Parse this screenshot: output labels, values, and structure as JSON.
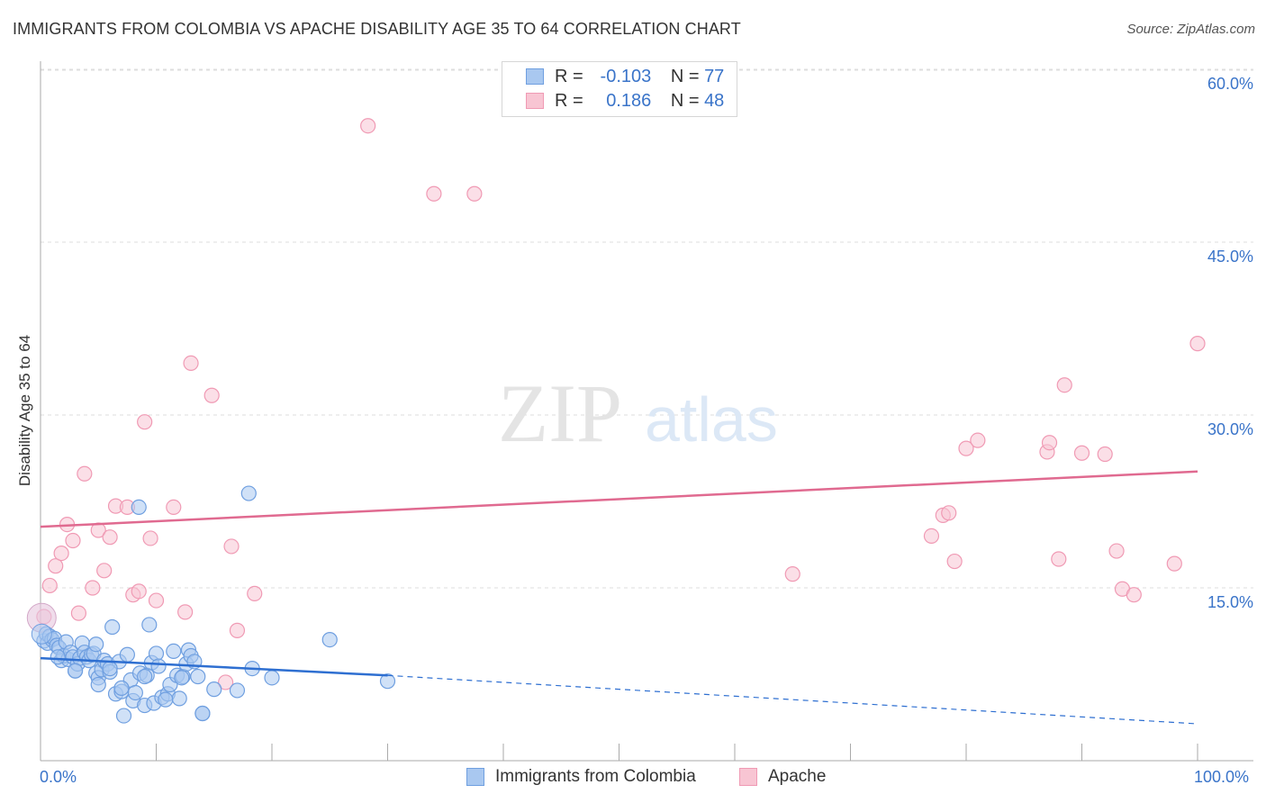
{
  "title": "IMMIGRANTS FROM COLOMBIA VS APACHE DISABILITY AGE 35 TO 64 CORRELATION CHART",
  "source": "Source: ZipAtlas.com",
  "legend": {
    "r_label": "R =",
    "n_label": "N =",
    "rows": [
      {
        "r": "-0.103",
        "n": "77",
        "fill": "#a9c8f0",
        "stroke": "#6f9fe0"
      },
      {
        "r": "0.186",
        "n": "48",
        "fill": "#f8c5d3",
        "stroke": "#f09ab4"
      }
    ]
  },
  "bottom_legend": [
    "Immigrants from Colombia",
    "Apache"
  ],
  "watermark": {
    "zip": "ZIP",
    "atlas": "atlas"
  },
  "chart_data": {
    "type": "scatter",
    "xlabel": "",
    "ylabel": "Disability Age 35 to 64",
    "xlim": [
      0,
      100
    ],
    "ylim": [
      0,
      62
    ],
    "x_tick_labels": [
      "0.0%",
      "100.0%"
    ],
    "y_ticks": [
      15,
      30,
      45,
      60
    ],
    "y_tick_labels": [
      "15.0%",
      "30.0%",
      "45.0%",
      "60.0%"
    ],
    "grid": true,
    "series": [
      {
        "name": "Immigrants from Colombia",
        "color": "#6f9fe0",
        "fill": "#a9c8f0",
        "trend_line": {
          "x": [
            0,
            30
          ],
          "y": [
            8.9,
            7.4
          ],
          "color": "#2e6fd1"
        },
        "trend_dashed": {
          "x": [
            30,
            100
          ],
          "y": [
            7.4,
            3.2
          ]
        },
        "points": [
          [
            0.3,
            10.4
          ],
          [
            0.5,
            11.0
          ],
          [
            0.6,
            10.2
          ],
          [
            0.8,
            10.8
          ],
          [
            1.0,
            10.5
          ],
          [
            1.2,
            10.6
          ],
          [
            1.4,
            10.0
          ],
          [
            1.6,
            9.8
          ],
          [
            1.8,
            8.7
          ],
          [
            2.0,
            9.1
          ],
          [
            2.2,
            10.3
          ],
          [
            2.4,
            8.8
          ],
          [
            2.6,
            9.4
          ],
          [
            2.8,
            9.0
          ],
          [
            3.0,
            7.8
          ],
          [
            3.2,
            8.4
          ],
          [
            3.4,
            8.9
          ],
          [
            3.6,
            10.2
          ],
          [
            3.8,
            9.4
          ],
          [
            4.0,
            9.0
          ],
          [
            4.2,
            8.7
          ],
          [
            4.4,
            9.2
          ],
          [
            4.6,
            9.3
          ],
          [
            4.8,
            7.6
          ],
          [
            5.0,
            7.2
          ],
          [
            5.0,
            6.6
          ],
          [
            5.3,
            7.9
          ],
          [
            5.5,
            8.7
          ],
          [
            5.8,
            8.4
          ],
          [
            6.0,
            7.7
          ],
          [
            6.2,
            11.6
          ],
          [
            6.5,
            5.8
          ],
          [
            6.8,
            8.6
          ],
          [
            7.0,
            6.0
          ],
          [
            7.2,
            3.9
          ],
          [
            7.5,
            9.2
          ],
          [
            7.8,
            7.0
          ],
          [
            8.0,
            5.2
          ],
          [
            8.2,
            5.9
          ],
          [
            8.6,
            7.6
          ],
          [
            9.0,
            4.8
          ],
          [
            9.2,
            7.4
          ],
          [
            9.4,
            11.8
          ],
          [
            9.6,
            8.5
          ],
          [
            9.8,
            5.0
          ],
          [
            10.0,
            9.3
          ],
          [
            10.2,
            8.2
          ],
          [
            10.5,
            5.5
          ],
          [
            11.0,
            5.8
          ],
          [
            11.2,
            6.6
          ],
          [
            11.5,
            9.5
          ],
          [
            11.8,
            7.4
          ],
          [
            12.0,
            5.4
          ],
          [
            12.3,
            7.3
          ],
          [
            12.6,
            8.4
          ],
          [
            12.8,
            9.6
          ],
          [
            13.0,
            9.1
          ],
          [
            13.3,
            8.6
          ],
          [
            13.6,
            7.3
          ],
          [
            14.0,
            4.1
          ],
          [
            3.0,
            7.8
          ],
          [
            4.8,
            10.1
          ],
          [
            6.0,
            8.0
          ],
          [
            7.0,
            6.3
          ],
          [
            9.0,
            7.3
          ],
          [
            10.8,
            5.3
          ],
          [
            12.2,
            7.2
          ],
          [
            14.0,
            4.1
          ],
          [
            15.0,
            6.2
          ],
          [
            17.0,
            6.1
          ],
          [
            18.0,
            23.2
          ],
          [
            18.3,
            8.0
          ],
          [
            20.0,
            7.2
          ],
          [
            25.0,
            10.5
          ],
          [
            30.0,
            6.9
          ],
          [
            1.5,
            9.0
          ],
          [
            8.5,
            22.0
          ]
        ]
      },
      {
        "name": "Apache",
        "color": "#f09ab4",
        "fill": "#f8c5d3",
        "trend_line": {
          "x": [
            0,
            100
          ],
          "y": [
            20.3,
            25.1
          ],
          "color": "#e06a90"
        },
        "points": [
          [
            0.3,
            12.5
          ],
          [
            0.8,
            15.2
          ],
          [
            1.3,
            16.9
          ],
          [
            1.8,
            18.0
          ],
          [
            2.3,
            20.5
          ],
          [
            2.8,
            19.1
          ],
          [
            3.3,
            12.8
          ],
          [
            3.8,
            24.9
          ],
          [
            4.5,
            15.0
          ],
          [
            5.0,
            20.0
          ],
          [
            5.5,
            16.5
          ],
          [
            6.0,
            19.4
          ],
          [
            6.5,
            22.1
          ],
          [
            7.5,
            22.0
          ],
          [
            8.0,
            14.4
          ],
          [
            8.5,
            14.7
          ],
          [
            9.0,
            29.4
          ],
          [
            9.5,
            19.3
          ],
          [
            10.0,
            13.9
          ],
          [
            11.5,
            22.0
          ],
          [
            12.5,
            12.9
          ],
          [
            13.0,
            34.5
          ],
          [
            14.8,
            31.7
          ],
          [
            16.0,
            6.8
          ],
          [
            16.5,
            18.6
          ],
          [
            17.0,
            11.3
          ],
          [
            18.5,
            14.5
          ],
          [
            28.3,
            55.1
          ],
          [
            34.0,
            49.2
          ],
          [
            37.5,
            49.2
          ],
          [
            65.0,
            16.2
          ],
          [
            77.0,
            19.5
          ],
          [
            78.0,
            21.3
          ],
          [
            78.5,
            21.5
          ],
          [
            79.0,
            17.3
          ],
          [
            80.0,
            27.1
          ],
          [
            81.0,
            27.8
          ],
          [
            87.0,
            26.8
          ],
          [
            87.2,
            27.6
          ],
          [
            88.0,
            17.5
          ],
          [
            88.5,
            32.6
          ],
          [
            90.0,
            26.7
          ],
          [
            92.0,
            26.6
          ],
          [
            93.0,
            18.2
          ],
          [
            93.5,
            14.9
          ],
          [
            94.5,
            14.4
          ],
          [
            98.0,
            17.1
          ],
          [
            100.0,
            36.2
          ]
        ]
      }
    ]
  }
}
